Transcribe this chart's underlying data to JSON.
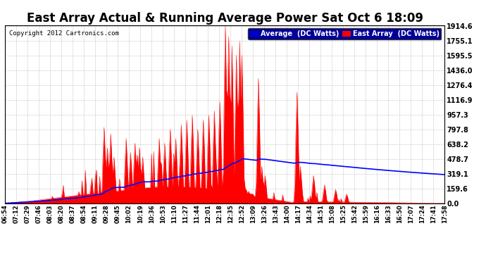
{
  "title": "East Array Actual & Running Average Power Sat Oct 6 18:09",
  "copyright": "Copyright 2012 Cartronics.com",
  "legend_avg": "Average  (DC Watts)",
  "legend_east": "East Array  (DC Watts)",
  "ymax": 1914.6,
  "yticks": [
    0.0,
    159.6,
    319.1,
    478.7,
    638.2,
    797.8,
    957.3,
    1116.9,
    1276.4,
    1436.0,
    1595.5,
    1755.1,
    1914.6
  ],
  "background_color": "#ffffff",
  "plot_bg": "#ffffff",
  "grid_color": "#c0c0c0",
  "fill_color": "#ff0000",
  "line_color": "#ff0000",
  "avg_color": "#0000ff",
  "title_fontsize": 12,
  "xtick_labels": [
    "06:54",
    "07:12",
    "07:29",
    "07:46",
    "08:03",
    "08:20",
    "08:37",
    "08:54",
    "09:11",
    "09:28",
    "09:45",
    "10:02",
    "10:19",
    "10:36",
    "10:53",
    "11:10",
    "11:27",
    "11:44",
    "12:01",
    "12:18",
    "12:35",
    "12:52",
    "13:09",
    "13:26",
    "13:43",
    "14:00",
    "14:17",
    "14:34",
    "14:51",
    "15:08",
    "15:25",
    "15:42",
    "15:59",
    "16:16",
    "16:33",
    "16:50",
    "17:07",
    "17:24",
    "17:41",
    "17:58"
  ]
}
